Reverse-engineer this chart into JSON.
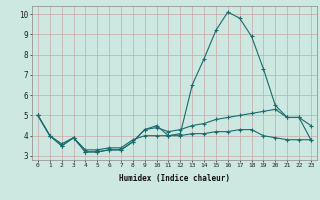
{
  "xlabel": "Humidex (Indice chaleur)",
  "background_color": "#cce8e0",
  "grid_color": "#b8d0cc",
  "line_color": "#1a6b6b",
  "xlim": [
    -0.5,
    23.5
  ],
  "ylim": [
    2.8,
    10.4
  ],
  "yticks": [
    3,
    4,
    5,
    6,
    7,
    8,
    9,
    10
  ],
  "xticks": [
    0,
    1,
    2,
    3,
    4,
    5,
    6,
    7,
    8,
    9,
    10,
    11,
    12,
    13,
    14,
    15,
    16,
    17,
    18,
    19,
    20,
    21,
    22,
    23
  ],
  "line1_x": [
    0,
    1,
    2,
    3,
    4,
    5,
    6,
    7,
    8,
    9,
    10,
    11,
    12,
    13,
    14,
    15,
    16,
    17,
    18,
    19,
    20,
    21,
    22,
    23
  ],
  "line1_y": [
    5.0,
    4.0,
    3.5,
    3.9,
    3.2,
    3.2,
    3.3,
    3.3,
    3.7,
    4.3,
    4.5,
    4.0,
    4.1,
    6.5,
    7.8,
    9.2,
    10.1,
    9.8,
    8.9,
    7.3,
    5.5,
    4.9,
    4.9,
    4.5
  ],
  "line2_x": [
    0,
    1,
    2,
    3,
    4,
    5,
    6,
    7,
    8,
    9,
    10,
    11,
    12,
    13,
    14,
    15,
    16,
    17,
    18,
    19,
    20,
    21,
    22,
    23
  ],
  "line2_y": [
    5.0,
    4.0,
    3.5,
    3.9,
    3.2,
    3.2,
    3.3,
    3.3,
    3.7,
    4.3,
    4.4,
    4.2,
    4.3,
    4.5,
    4.6,
    4.8,
    4.9,
    5.0,
    5.1,
    5.2,
    5.3,
    4.9,
    4.9,
    3.8
  ],
  "line3_x": [
    0,
    1,
    2,
    3,
    4,
    5,
    6,
    7,
    8,
    9,
    10,
    11,
    12,
    13,
    14,
    15,
    16,
    17,
    18,
    19,
    20,
    21,
    22,
    23
  ],
  "line3_y": [
    5.0,
    4.0,
    3.6,
    3.9,
    3.3,
    3.3,
    3.4,
    3.4,
    3.8,
    4.0,
    4.0,
    4.0,
    4.0,
    4.1,
    4.1,
    4.2,
    4.2,
    4.3,
    4.3,
    4.0,
    3.9,
    3.8,
    3.8,
    3.8
  ]
}
